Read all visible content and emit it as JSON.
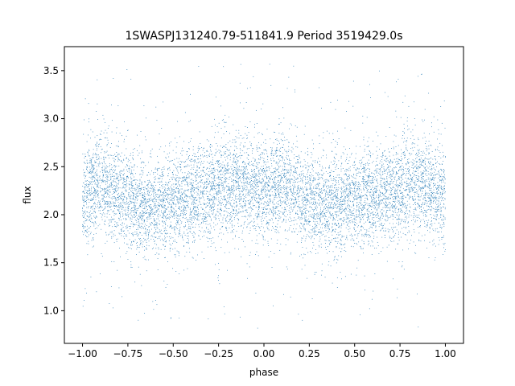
{
  "chart_data": {
    "type": "scatter",
    "title": "1SWASPJ131240.79-511841.9 Period 3519429.0s",
    "xlabel": "phase",
    "ylabel": "flux",
    "xlim": [
      -1.1,
      1.1
    ],
    "ylim": [
      0.66,
      3.75
    ],
    "x_ticks": [
      -1.0,
      -0.75,
      -0.5,
      -0.25,
      0.0,
      0.25,
      0.5,
      0.75,
      1.0
    ],
    "x_tick_labels": [
      "−1.00",
      "−0.75",
      "−0.50",
      "−0.25",
      "0.00",
      "0.25",
      "0.50",
      "0.75",
      "1.00"
    ],
    "y_ticks": [
      1.0,
      1.5,
      2.0,
      2.5,
      3.0,
      3.5
    ],
    "y_tick_labels": [
      "1.0",
      "1.5",
      "2.0",
      "2.5",
      "3.0",
      "3.5"
    ],
    "grid": false,
    "legend": "none",
    "marker_color": "#1f77b4",
    "phase_range": [
      -1.0,
      1.0
    ],
    "flux_median": 2.2,
    "flux_spread": 0.25,
    "flux_min": 0.8,
    "flux_max": 3.6,
    "profile": {
      "phase": [
        -1.0,
        -0.9,
        -0.8,
        -0.7,
        -0.6,
        -0.5,
        -0.4,
        -0.3,
        -0.2,
        -0.1,
        0.0,
        0.1,
        0.2,
        0.3,
        0.4,
        0.5,
        0.6,
        0.7,
        0.8,
        0.9,
        1.0
      ],
      "median_flux": [
        2.2,
        2.35,
        2.2,
        2.1,
        2.1,
        2.15,
        2.2,
        2.25,
        2.3,
        2.3,
        2.25,
        2.35,
        2.2,
        2.1,
        2.1,
        2.15,
        2.2,
        2.25,
        2.3,
        2.3,
        2.2
      ]
    },
    "n_points": 9000
  }
}
